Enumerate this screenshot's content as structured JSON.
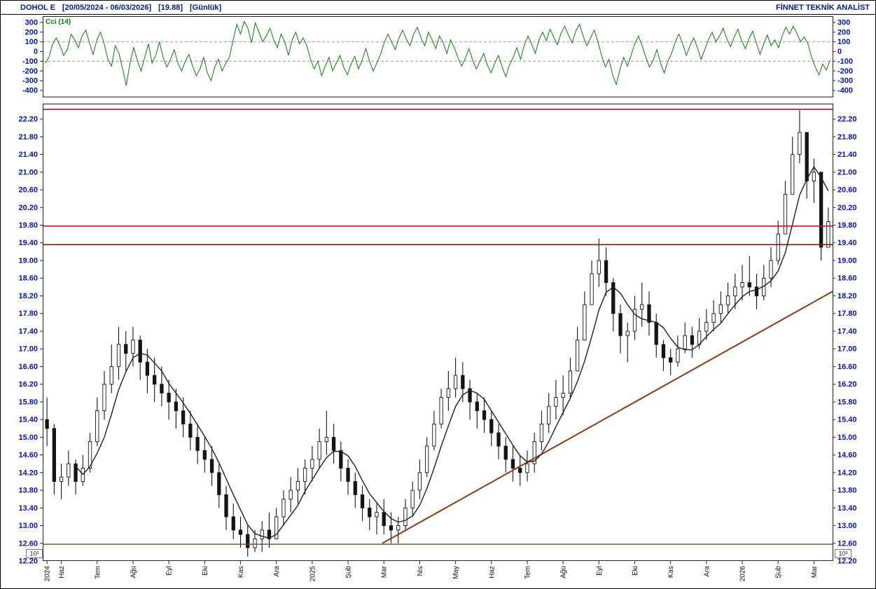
{
  "header": {
    "symbol": "DOHOL E",
    "date_range": "[20/05/2024 - 06/03/2026]",
    "last_price": "[19.88]",
    "period": "[Günlük]",
    "app_title": "FİNNET TEKNİK ANALİST"
  },
  "axis": {
    "scale_badge": "10³",
    "bottom_price_label": "12.20"
  },
  "colors": {
    "header_text": "#001b8e",
    "axis_label": "#0013c0",
    "cci_line": "#0a7d0a",
    "dashed_grid": "#9a9a9a",
    "candle": "#141414",
    "ma_line": "#1f1f1f",
    "month_label": "#111111",
    "panel_border": "#222222"
  },
  "chart_data": [
    {
      "type": "line",
      "name": "CCI",
      "title": "Cci (14)",
      "legend_position": "top-left",
      "line_color": "#0a7d0a",
      "ylim": [
        -400,
        300
      ],
      "yticks": [
        300,
        200,
        100,
        0,
        -100,
        -200,
        -300,
        -400
      ],
      "dashed_levels": [
        100,
        -100
      ],
      "values": [
        -120,
        -60,
        80,
        140,
        60,
        -40,
        20,
        180,
        120,
        40,
        160,
        220,
        90,
        -30,
        120,
        200,
        80,
        -80,
        -150,
        60,
        -20,
        -180,
        -350,
        -120,
        40,
        -90,
        -200,
        -60,
        80,
        -120,
        -40,
        100,
        -60,
        -160,
        -80,
        20,
        -120,
        -200,
        -100,
        -30,
        -150,
        -250,
        -180,
        -60,
        -220,
        -300,
        -160,
        -80,
        -200,
        -120,
        -60,
        120,
        280,
        180,
        310,
        240,
        90,
        295,
        200,
        100,
        160,
        240,
        120,
        40,
        180,
        100,
        -40,
        120,
        200,
        80,
        140,
        60,
        -80,
        -180,
        -100,
        -250,
        -150,
        -60,
        -200,
        -120,
        -40,
        -160,
        -240,
        -130,
        -50,
        -180,
        -90,
        30,
        -100,
        -200,
        -120,
        -30,
        90,
        180,
        100,
        20,
        140,
        220,
        130,
        60,
        180,
        250,
        140,
        60,
        200,
        120,
        30,
        160,
        90,
        -20,
        120,
        40,
        -60,
        -150,
        -70,
        30,
        -90,
        -180,
        -100,
        -20,
        -140,
        -220,
        -120,
        -40,
        -160,
        -260,
        -140,
        -60,
        40,
        -80,
        60,
        160,
        80,
        -20,
        120,
        200,
        110,
        230,
        150,
        70,
        190,
        260,
        170,
        90,
        210,
        280,
        160,
        60,
        140,
        220,
        100,
        -40,
        -160,
        -80,
        -240,
        -340,
        -180,
        -60,
        -150,
        -40,
        80,
        160,
        60,
        -60,
        -160,
        -90,
        20,
        -120,
        -220,
        -100,
        -20,
        100,
        180,
        80,
        -40,
        60,
        140,
        40,
        -80,
        20,
        120,
        200,
        100,
        160,
        240,
        130,
        50,
        150,
        230,
        110,
        30,
        130,
        210,
        90,
        -30,
        80,
        170,
        60,
        120,
        40,
        160,
        250,
        180,
        260,
        190,
        100,
        150,
        80,
        -60,
        -160,
        -240,
        -130,
        -190,
        -90
      ]
    },
    {
      "type": "candlestick",
      "title": "DOHOL E (Günlük)",
      "ylim": [
        12.2,
        22.55
      ],
      "yticks": [
        22.2,
        21.8,
        21.4,
        21.0,
        20.6,
        20.2,
        19.8,
        19.4,
        19.0,
        18.6,
        18.2,
        17.8,
        17.4,
        17.0,
        16.6,
        16.2,
        15.8,
        15.4,
        15.0,
        14.6,
        14.2,
        13.8,
        13.4,
        13.0,
        12.6
      ],
      "first_open": 15.4,
      "ma_window": 5,
      "x_ticks": [
        {
          "label": "2024",
          "bar": 0
        },
        {
          "label": "Haz",
          "bar": 2
        },
        {
          "label": "Tem",
          "bar": 7
        },
        {
          "label": "Ağu",
          "bar": 12
        },
        {
          "label": "Eyl",
          "bar": 17
        },
        {
          "label": "Eki",
          "bar": 22
        },
        {
          "label": "Kas",
          "bar": 27
        },
        {
          "label": "Ara",
          "bar": 32
        },
        {
          "label": "2025",
          "bar": 37
        },
        {
          "label": "Şub",
          "bar": 42
        },
        {
          "label": "Mar",
          "bar": 47
        },
        {
          "label": "Nis",
          "bar": 52
        },
        {
          "label": "May",
          "bar": 57
        },
        {
          "label": "Haz",
          "bar": 62
        },
        {
          "label": "Tem",
          "bar": 67
        },
        {
          "label": "Ağu",
          "bar": 72
        },
        {
          "label": "Eyl",
          "bar": 77
        },
        {
          "label": "Eki",
          "bar": 82
        },
        {
          "label": "Kas",
          "bar": 87
        },
        {
          "label": "Ara",
          "bar": 92
        },
        {
          "label": "2026",
          "bar": 97
        },
        {
          "label": "Şub",
          "bar": 102
        },
        {
          "label": "Mar",
          "bar": 107
        }
      ],
      "hlines": [
        {
          "price": 22.42,
          "color": "#b31616",
          "width": 1.6
        },
        {
          "price": 19.78,
          "color": "#c01616",
          "width": 1.6
        },
        {
          "price": 19.36,
          "color": "#8e0e0e",
          "width": 1.6
        },
        {
          "price": 12.58,
          "color": "#7a4030",
          "width": 1.4
        }
      ],
      "trendline": {
        "start_frac": 0.43,
        "start_price": 12.6,
        "end_frac": 1.0,
        "end_price": 18.3,
        "color": "#8a3a16",
        "width": 2
      },
      "bars_hlc": [
        [
          15.9,
          14.8,
          15.2
        ],
        [
          15.3,
          13.7,
          14.0
        ],
        [
          14.4,
          13.6,
          14.1
        ],
        [
          14.7,
          13.9,
          14.4
        ],
        [
          14.5,
          13.7,
          14.0
        ],
        [
          14.6,
          13.9,
          14.3
        ],
        [
          15.1,
          14.2,
          14.9
        ],
        [
          15.9,
          14.8,
          15.6
        ],
        [
          16.5,
          15.4,
          16.2
        ],
        [
          17.1,
          16.0,
          16.6
        ],
        [
          17.5,
          16.3,
          17.1
        ],
        [
          17.4,
          16.5,
          16.9
        ],
        [
          17.5,
          16.6,
          17.2
        ],
        [
          17.3,
          16.3,
          16.7
        ],
        [
          17.0,
          16.0,
          16.4
        ],
        [
          16.8,
          15.8,
          16.2
        ],
        [
          16.6,
          15.7,
          16.0
        ],
        [
          16.3,
          15.4,
          15.8
        ],
        [
          16.1,
          15.2,
          15.6
        ],
        [
          15.9,
          15.0,
          15.3
        ],
        [
          15.6,
          14.7,
          15.0
        ],
        [
          15.3,
          14.4,
          14.7
        ],
        [
          15.0,
          14.2,
          14.5
        ],
        [
          14.8,
          13.9,
          14.2
        ],
        [
          14.4,
          13.4,
          13.7
        ],
        [
          13.9,
          12.9,
          13.2
        ],
        [
          13.5,
          12.7,
          12.9
        ],
        [
          13.2,
          12.5,
          12.8
        ],
        [
          13.0,
          12.3,
          12.5
        ],
        [
          12.9,
          12.4,
          12.7
        ],
        [
          13.1,
          12.4,
          12.9
        ],
        [
          13.3,
          12.5,
          12.7
        ],
        [
          13.4,
          12.7,
          13.2
        ],
        [
          13.8,
          13.0,
          13.6
        ],
        [
          14.1,
          13.3,
          13.8
        ],
        [
          14.3,
          13.5,
          14.0
        ],
        [
          14.5,
          13.7,
          14.3
        ],
        [
          14.8,
          14.0,
          14.5
        ],
        [
          15.2,
          14.3,
          14.9
        ],
        [
          15.6,
          14.6,
          15.0
        ],
        [
          15.3,
          14.4,
          14.7
        ],
        [
          14.9,
          14.0,
          14.3
        ],
        [
          14.5,
          13.7,
          14.0
        ],
        [
          14.2,
          13.4,
          13.7
        ],
        [
          13.9,
          13.1,
          13.4
        ],
        [
          13.6,
          12.9,
          13.2
        ],
        [
          13.5,
          12.8,
          13.3
        ],
        [
          13.6,
          12.8,
          13.0
        ],
        [
          13.3,
          12.6,
          12.9
        ],
        [
          13.2,
          12.6,
          13.0
        ],
        [
          13.6,
          12.9,
          13.4
        ],
        [
          14.0,
          13.2,
          13.8
        ],
        [
          14.5,
          13.6,
          14.2
        ],
        [
          15.0,
          14.1,
          14.8
        ],
        [
          15.6,
          14.7,
          15.3
        ],
        [
          16.1,
          15.2,
          15.9
        ],
        [
          16.5,
          15.6,
          16.1
        ],
        [
          16.8,
          15.9,
          16.4
        ],
        [
          16.7,
          15.8,
          16.1
        ],
        [
          16.3,
          15.4,
          15.8
        ],
        [
          16.0,
          15.2,
          15.6
        ],
        [
          15.9,
          15.1,
          15.4
        ],
        [
          15.6,
          14.8,
          15.1
        ],
        [
          15.3,
          14.5,
          14.8
        ],
        [
          15.0,
          14.2,
          14.5
        ],
        [
          14.8,
          14.0,
          14.3
        ],
        [
          14.6,
          13.9,
          14.2
        ],
        [
          14.7,
          14.0,
          14.4
        ],
        [
          15.1,
          14.2,
          14.9
        ],
        [
          15.6,
          14.7,
          15.3
        ],
        [
          16.0,
          15.1,
          15.7
        ],
        [
          16.3,
          15.4,
          15.9
        ],
        [
          16.4,
          15.5,
          16.0
        ],
        [
          16.8,
          15.9,
          16.5
        ],
        [
          17.5,
          16.5,
          17.2
        ],
        [
          18.3,
          17.2,
          18.0
        ],
        [
          19.0,
          18.0,
          18.7
        ],
        [
          19.5,
          18.4,
          19.0
        ],
        [
          19.3,
          18.2,
          18.5
        ],
        [
          18.6,
          17.4,
          17.8
        ],
        [
          18.0,
          16.9,
          17.3
        ],
        [
          17.6,
          16.7,
          17.4
        ],
        [
          18.2,
          17.2,
          17.9
        ],
        [
          18.5,
          17.5,
          18.0
        ],
        [
          18.3,
          17.3,
          17.6
        ],
        [
          17.8,
          16.8,
          17.1
        ],
        [
          17.2,
          16.5,
          16.8
        ],
        [
          17.0,
          16.4,
          16.7
        ],
        [
          17.3,
          16.6,
          17.0
        ],
        [
          17.6,
          16.9,
          17.3
        ],
        [
          17.5,
          16.8,
          17.1
        ],
        [
          17.7,
          17.0,
          17.4
        ],
        [
          17.9,
          17.2,
          17.6
        ],
        [
          18.1,
          17.4,
          17.8
        ],
        [
          18.3,
          17.6,
          18.0
        ],
        [
          18.5,
          17.8,
          18.2
        ],
        [
          18.7,
          17.9,
          18.4
        ],
        [
          18.9,
          18.1,
          18.5
        ],
        [
          19.1,
          18.2,
          18.4
        ],
        [
          18.7,
          17.9,
          18.2
        ],
        [
          18.9,
          18.1,
          18.6
        ],
        [
          19.3,
          18.4,
          19.0
        ],
        [
          19.9,
          18.9,
          19.6
        ],
        [
          20.8,
          19.6,
          20.5
        ],
        [
          21.8,
          20.5,
          21.4
        ],
        [
          22.4,
          21.2,
          21.9
        ],
        [
          21.9,
          20.4,
          20.8
        ],
        [
          21.3,
          20.3,
          21.0
        ],
        [
          20.8,
          19.0,
          19.3
        ],
        [
          20.2,
          19.4,
          19.88
        ]
      ]
    }
  ]
}
